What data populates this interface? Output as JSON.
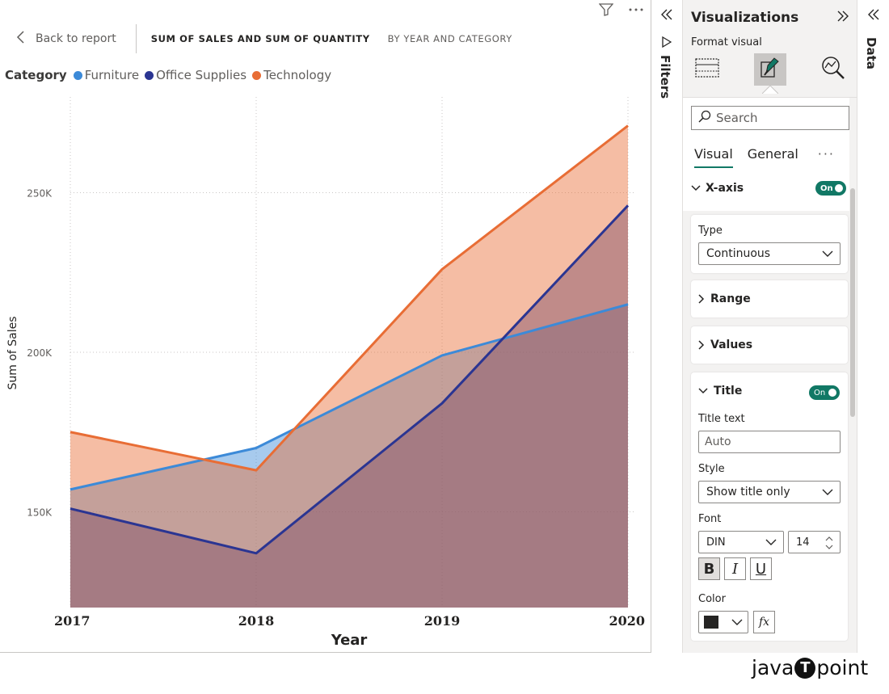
{
  "header": {
    "back_label": "Back to report",
    "title": "SUM OF SALES AND SUM OF QUANTITY",
    "subtitle": "BY YEAR AND CATEGORY"
  },
  "legend": {
    "title": "Category",
    "items": [
      {
        "label": "Furniture",
        "color": "#3c8ad8"
      },
      {
        "label": "Office Supplies",
        "color": "#2b3592"
      },
      {
        "label": "Technology",
        "color": "#e86d35"
      }
    ]
  },
  "chart_data": {
    "type": "area",
    "x": [
      "2017",
      "2018",
      "2019",
      "2020"
    ],
    "xlabel": "Year",
    "ylabel": "Sum of Sales",
    "yticks": [
      "150K",
      "200K",
      "250K"
    ],
    "ylim": [
      120000,
      280000
    ],
    "series": [
      {
        "name": "Furniture",
        "color": "#3c8ad8",
        "values": [
          157000,
          170000,
          199000,
          215000
        ]
      },
      {
        "name": "Office Supplies",
        "color": "#2b3592",
        "values": [
          151000,
          137000,
          184000,
          246000
        ]
      },
      {
        "name": "Technology",
        "color": "#e86d35",
        "values": [
          175000,
          163000,
          226000,
          271000
        ]
      }
    ],
    "grid": true
  },
  "filters": {
    "label": "Filters"
  },
  "viz": {
    "title": "Visualizations",
    "format_label": "Format visual",
    "search_placeholder": "Search",
    "tab_visual": "Visual",
    "tab_general": "General",
    "more": "···",
    "xaxis_label": "X-axis",
    "toggle_on": "On",
    "type_label": "Type",
    "type_value": "Continuous",
    "range_label": "Range",
    "values_label": "Values",
    "title_section": "Title",
    "title_text_label": "Title text",
    "title_text_value": "Auto",
    "style_label": "Style",
    "style_value": "Show title only",
    "font_label": "Font",
    "font_value": "DIN",
    "font_size": "14",
    "bold": "B",
    "italic": "I",
    "underline": "U",
    "color_label": "Color",
    "fx": "fx"
  },
  "data_pane": {
    "label": "Data"
  },
  "brand": {
    "pre": "java",
    "mid": "T",
    "post": "point"
  }
}
